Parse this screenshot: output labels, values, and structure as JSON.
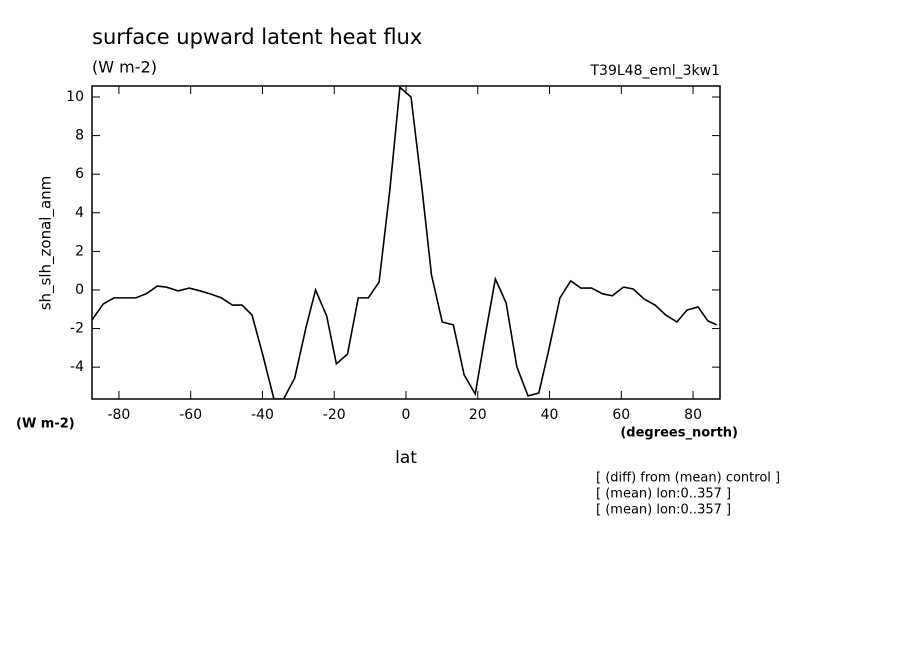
{
  "chart_data": {
    "type": "line",
    "title": "surface upward latent heat flux",
    "subtitle": "(W m-2)",
    "run_label": "T39L48_eml_3kw1",
    "y_label": "sh_slh_zonal_anm",
    "y_units": "(W m-2)",
    "x_units": "(degrees_north)",
    "x_label": "lat",
    "notes": [
      "[ (diff) from (mean) control ]",
      "[ (mean) lon:0..357 ]",
      "[ (mean) lon:0..357 ]"
    ],
    "x": [
      -87.5,
      -84.4,
      -81.4,
      -78.3,
      -75.3,
      -72.4,
      -69.3,
      -66.8,
      -63.5,
      -60.4,
      -57.3,
      -54.6,
      -51.5,
      -48.4,
      -45.7,
      -42.9,
      -39.9,
      -36.8,
      -34.1,
      -31,
      -27.9,
      -25.2,
      -22.1,
      -19.4,
      -16.3,
      -13.3,
      -10.5,
      -7.5,
      -4.5,
      -1.7,
      1.4,
      4.5,
      7.1,
      10.1,
      13.2,
      16.2,
      19.3,
      22.1,
      24.9,
      27.9,
      30.9,
      34,
      37,
      39.8,
      42.9,
      45.9,
      48.7,
      51.7,
      54.8,
      57.5,
      60.6,
      63.3,
      66.4,
      69.4,
      72.4,
      75.5,
      78.3,
      81.4,
      84.1,
      86.6
    ],
    "series": [
      {
        "color": "#000000",
        "values": [
          -1.55,
          -0.73,
          -0.41,
          -0.41,
          -0.41,
          -0.2,
          0.2,
          0.15,
          -0.05,
          0.1,
          -0.05,
          -0.2,
          -0.4,
          -0.78,
          -0.78,
          -1.3,
          -3.37,
          -5.65,
          -5.65,
          -4.56,
          -1.97,
          0,
          -1.35,
          -3.83,
          -3.32,
          -0.41,
          -0.41,
          0.41,
          5.18,
          10.5,
          10,
          5.18,
          0.78,
          -1.66,
          -1.81,
          -4.4,
          -5.39,
          -2.33,
          0.57,
          -0.67,
          -3.99,
          -5.49,
          -5.34,
          -3.1,
          -0.41,
          0.47,
          0.1,
          0.1,
          -0.2,
          -0.3,
          0.15,
          0.05,
          -0.47,
          -0.78,
          -1.3,
          -1.66,
          -1.04,
          -0.88,
          -1.6,
          -1.81
        ]
      }
    ],
    "xlim": [
      -87.5,
      87.5
    ],
    "ylim": [
      -5.65,
      10.57
    ],
    "xticks": [
      -80,
      -60,
      -40,
      -20,
      0,
      20,
      40,
      60,
      80
    ],
    "yticks": [
      -4,
      -2,
      0,
      2,
      4,
      6,
      8,
      10
    ]
  }
}
